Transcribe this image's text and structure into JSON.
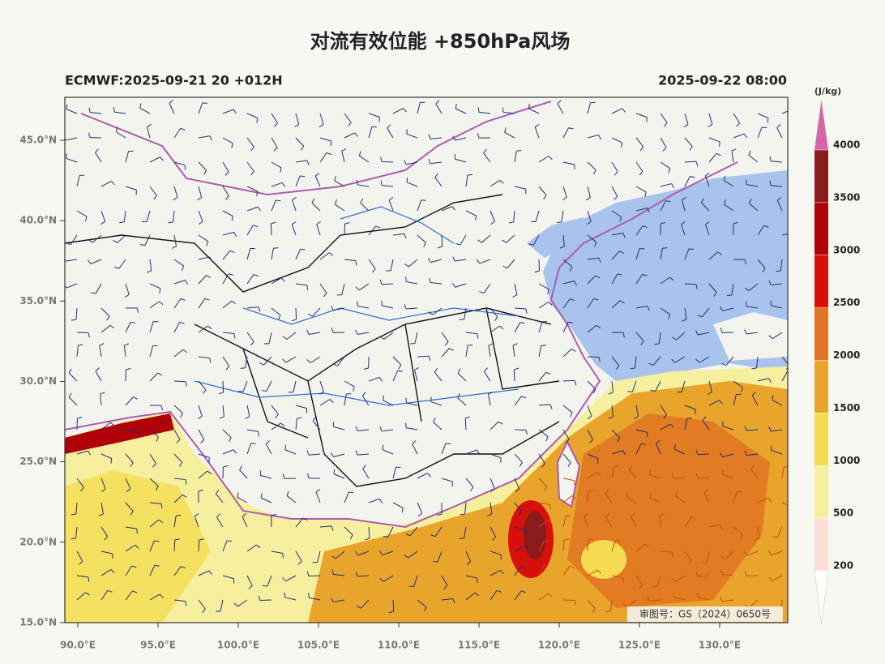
{
  "header": {
    "title": "对流有效位能 +850hPa风场",
    "subtitle_left": "ECMWF:2025-09-21 20 +012H",
    "subtitle_right": "2025-09-22 08:00"
  },
  "map": {
    "lat_ticks": [
      {
        "value": 45,
        "label": "45.0°N"
      },
      {
        "value": 40,
        "label": "40.0°N"
      },
      {
        "value": 35,
        "label": "35.0°N"
      },
      {
        "value": 30,
        "label": "30.0°N"
      },
      {
        "value": 25,
        "label": "25.0°N"
      },
      {
        "value": 20,
        "label": "20.0°N"
      },
      {
        "value": 15,
        "label": "15.0°N"
      }
    ],
    "lon_ticks": [
      {
        "value": 90,
        "label": "90.0°E"
      },
      {
        "value": 95,
        "label": "95.0°E"
      },
      {
        "value": 100,
        "label": "100.0°E"
      },
      {
        "value": 105,
        "label": "105.0°E"
      },
      {
        "value": 110,
        "label": "110.0°E"
      },
      {
        "value": 115,
        "label": "115.0°E"
      },
      {
        "value": 120,
        "label": "120.0°E"
      },
      {
        "value": 125,
        "label": "125.0°E"
      },
      {
        "value": 130,
        "label": "130.0°E"
      }
    ],
    "review_number": "审图号：GS（2024）0650号"
  },
  "colorbar": {
    "unit": "(J/kg)",
    "levels": [
      200,
      500,
      1000,
      1500,
      2000,
      2500,
      3000,
      3500,
      4000
    ],
    "colors": [
      "#fbe0d8",
      "#f6ef9e",
      "#f6dc50",
      "#e9a52b",
      "#e07422",
      "#d8100c",
      "#b00008",
      "#8b1a1a"
    ],
    "over_color": "#d466a8",
    "under_color": "#ffffff"
  }
}
